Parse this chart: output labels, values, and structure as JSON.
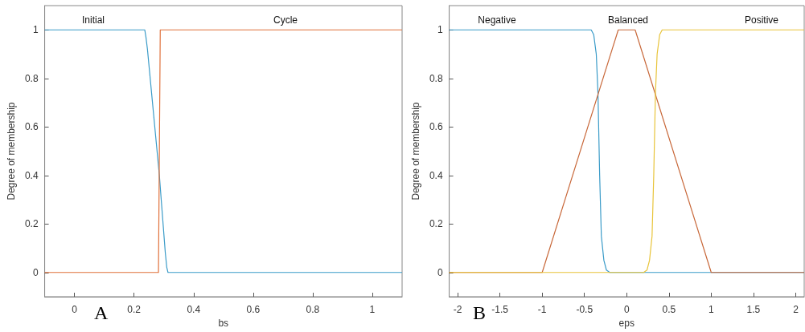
{
  "chart_data": [
    {
      "type": "line",
      "xlabel": "bs",
      "ylabel": "Degree of membership",
      "xlim": [
        -0.1,
        1.1
      ],
      "xticks": [
        0,
        0.2,
        0.4,
        0.6,
        0.8,
        1
      ],
      "ylim": [
        -0.1,
        1.1
      ],
      "yticks": [
        0,
        0.2,
        0.4,
        0.6,
        0.8,
        1
      ],
      "grid": false,
      "marker": "none",
      "series": [
        {
          "color": "#3a9bc8",
          "x": [
            -0.1,
            0.236,
            0.24,
            0.245,
            0.285,
            0.305,
            0.31,
            0.314,
            1.1
          ],
          "values": [
            1,
            1,
            0.97,
            0.92,
            0.4,
            0.08,
            0.02,
            0,
            0
          ]
        },
        {
          "color": "#e0703a",
          "x": [
            -0.1,
            0.282,
            0.288,
            1.1
          ],
          "values": [
            0,
            0,
            1,
            1
          ]
        }
      ],
      "annotations": [
        "Initial",
        "Cycle",
        "A"
      ]
    },
    {
      "type": "line",
      "xlabel": "eps",
      "ylabel": "Degree of membership",
      "xlim": [
        -2.1,
        2.1
      ],
      "xticks": [
        -2,
        -1.5,
        -1,
        -0.5,
        0,
        0.5,
        1,
        1.5,
        2
      ],
      "ylim": [
        -0.1,
        1.1
      ],
      "yticks": [
        0,
        0.2,
        0.4,
        0.6,
        0.8,
        1
      ],
      "grid": false,
      "marker": "none",
      "series": [
        {
          "color": "#3a9bc8",
          "x": [
            -2.1,
            -0.42,
            -0.39,
            -0.36,
            -0.34,
            -0.32,
            -0.3,
            -0.27,
            -0.24,
            -0.2,
            2.1
          ],
          "values": [
            1,
            1,
            0.98,
            0.9,
            0.74,
            0.4,
            0.15,
            0.05,
            0.01,
            0,
            0
          ]
        },
        {
          "color": "#c8683a",
          "x": [
            -2.1,
            -1,
            -0.1,
            0.1,
            1,
            2.1
          ],
          "values": [
            0,
            0,
            1,
            1,
            0,
            0
          ]
        },
        {
          "color": "#e8c43a",
          "x": [
            -2.1,
            0.2,
            0.24,
            0.27,
            0.3,
            0.32,
            0.34,
            0.36,
            0.39,
            0.42,
            2.1
          ],
          "values": [
            0,
            0,
            0.01,
            0.05,
            0.15,
            0.4,
            0.74,
            0.9,
            0.98,
            1,
            1
          ]
        }
      ],
      "annotations": [
        "Negative",
        "Balanced",
        "Positive",
        "B"
      ]
    }
  ]
}
